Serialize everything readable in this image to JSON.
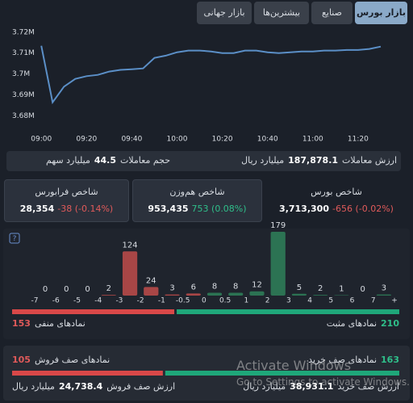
{
  "tabs": [
    "بازار جهانی",
    "بیشترین‌ها",
    "صنایع",
    "بازار بورس"
  ],
  "chart_data": [
    {
      "type": "line",
      "x": [
        "09:00",
        "09:05",
        "09:10",
        "09:15",
        "09:20",
        "09:25",
        "09:30",
        "09:35",
        "09:40",
        "09:45",
        "09:50",
        "09:55",
        "10:00",
        "10:05",
        "10:10",
        "10:15",
        "10:20",
        "10:25",
        "10:30",
        "10:35",
        "10:40",
        "10:45",
        "10:50",
        "10:55",
        "11:00",
        "11:05",
        "11:10",
        "11:15",
        "11:20",
        "11:25",
        "11:30"
      ],
      "values": [
        3713500,
        3686500,
        3694000,
        3697700,
        3699000,
        3699600,
        3701200,
        3702000,
        3702300,
        3702700,
        3707700,
        3708800,
        3710400,
        3711200,
        3711200,
        3710800,
        3710000,
        3710000,
        3711200,
        3711200,
        3710400,
        3710000,
        3710400,
        3710800,
        3710800,
        3711200,
        3711200,
        3711500,
        3711500,
        3712000,
        3713100
      ],
      "color": "#5b8fc7",
      "xlim": [
        "08:56",
        "11:40"
      ],
      "xticks": [
        "09:00",
        "09:20",
        "09:40",
        "10:00",
        "10:20",
        "10:40",
        "11:00",
        "11:20"
      ],
      "ylim": [
        3676000,
        3723000
      ],
      "yticks": [
        {
          "value": 3720000,
          "label": "3.72M"
        },
        {
          "value": 3710000,
          "label": "3.71M"
        },
        {
          "value": 3700000,
          "label": "3.7M"
        },
        {
          "value": 3690000,
          "label": "3.69M"
        },
        {
          "value": 3680000,
          "label": "3.68M"
        }
      ]
    },
    {
      "type": "histogram",
      "bins": [
        -7,
        -6,
        -5,
        -4,
        -3,
        -2,
        -1,
        -0.5,
        0,
        0.5,
        1,
        2,
        3,
        4,
        5,
        6,
        7,
        "+"
      ],
      "values": [
        0,
        0,
        0,
        2,
        124,
        24,
        3,
        6,
        8,
        8,
        12,
        179,
        5,
        2,
        1,
        0,
        3
      ],
      "colors": [
        "#a84646",
        "#a84646",
        "#a84646",
        "#a84646",
        "#a84646",
        "#a84646",
        "#a84646",
        "#a84646",
        "#2c7353",
        "#2c7353",
        "#2c7353",
        "#2c7353",
        "#2c7353",
        "#2c7353",
        "#2c7353",
        "#2c7353",
        "#2c7353"
      ]
    }
  ],
  "stats": {
    "value": {
      "label": "ارزش معاملات",
      "amount": "187,878.1",
      "unit": "میلیارد ریال"
    },
    "volume": {
      "label": "حجم معاملات",
      "amount": "44.5",
      "unit": "میلیارد سهم"
    }
  },
  "indices": [
    {
      "name": "شاخص بورس",
      "value": "3,713,300",
      "change": "-656 (-0.02%)",
      "color": "#e05a5a"
    },
    {
      "name": "شاخص هم‌وزن",
      "value": "953,435",
      "change": "753 (0.08%)",
      "color": "#2fbf8a"
    },
    {
      "name": "شاخص فرابورس",
      "value": "28,354",
      "change": "-38 (-0.14%)",
      "color": "#e05a5a"
    }
  ],
  "breadth": {
    "negative": {
      "count": 153,
      "label": "نمادهای منفی",
      "color": "#d94848"
    },
    "positive": {
      "count": 210,
      "label": "نمادهای مثبت",
      "color": "#1fa77a"
    }
  },
  "queues": {
    "sell": {
      "count": 105,
      "label": "نمادهای صف فروش",
      "value_label": "ارزش صف فروش",
      "amount": "24,738.4",
      "unit": "میلیارد ریال",
      "color": "#d94848"
    },
    "buy": {
      "count": 163,
      "label": "نمادهای صف خرید",
      "value_label": "ارزش صف خرید",
      "amount": "38,931.1",
      "unit": "میلیارد ریال",
      "color": "#1fa77a"
    }
  },
  "watermark": {
    "title": "Activate Windows",
    "text": "Go to Settings to activate Windows."
  }
}
